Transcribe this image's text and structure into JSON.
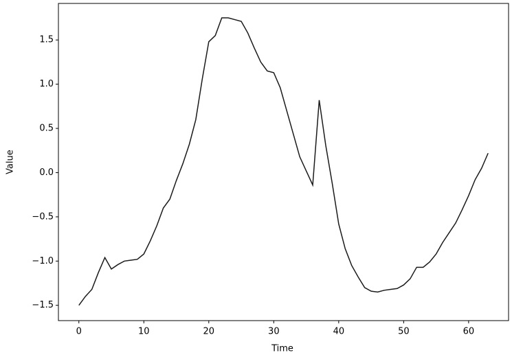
{
  "chart_data": {
    "type": "line",
    "xlabel": "Time",
    "ylabel": "Value",
    "x": [
      0,
      1,
      2,
      3,
      4,
      5,
      6,
      7,
      8,
      9,
      10,
      11,
      12,
      13,
      14,
      15,
      16,
      17,
      18,
      19,
      20,
      21,
      22,
      23,
      24,
      25,
      26,
      27,
      28,
      29,
      30,
      31,
      32,
      33,
      34,
      35,
      36,
      37,
      38,
      39,
      40,
      41,
      42,
      43,
      44,
      45,
      46,
      47,
      48,
      49,
      50,
      51,
      52,
      53,
      54,
      55,
      56,
      57,
      58,
      59,
      60,
      61,
      62,
      63
    ],
    "series": [
      {
        "color": "#1a1a1a",
        "values": [
          -1.5,
          -1.4,
          -1.32,
          -1.13,
          -0.96,
          -1.09,
          -1.04,
          -1.0,
          -0.99,
          -0.98,
          -0.92,
          -0.77,
          -0.6,
          -0.4,
          -0.3,
          -0.09,
          0.1,
          0.32,
          0.6,
          1.06,
          1.48,
          1.55,
          1.75,
          1.75,
          1.73,
          1.71,
          1.58,
          1.41,
          1.25,
          1.15,
          1.13,
          0.96,
          0.7,
          0.44,
          0.18,
          0.02,
          -0.14,
          0.82,
          0.31,
          -0.12,
          -0.58,
          -0.86,
          -1.05,
          -1.18,
          -1.3,
          -1.34,
          -1.35,
          -1.33,
          -1.32,
          -1.31,
          -1.27,
          -1.2,
          -1.07,
          -1.07,
          -1.01,
          -0.92,
          -0.79,
          -0.68,
          -0.57,
          -0.42,
          -0.26,
          -0.08,
          0.05,
          0.22
        ]
      }
    ],
    "xlim": [
      -3.15,
      66.15
    ],
    "ylim": [
      -1.673,
      1.913
    ],
    "xticks": [
      0,
      10,
      20,
      30,
      40,
      50,
      60
    ],
    "yticks": [
      {
        "value": -1.5,
        "label": "−1.5"
      },
      {
        "value": -1.0,
        "label": "−1.0"
      },
      {
        "value": -0.5,
        "label": "−0.5"
      },
      {
        "value": 0,
        "label": "0.0"
      },
      0.5,
      {
        "value": 1.0,
        "label": "1.0"
      },
      1.5
    ]
  }
}
